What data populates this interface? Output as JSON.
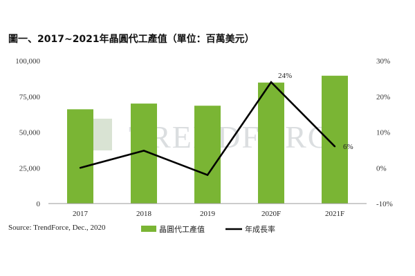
{
  "title": "圖一、2017~2021年晶圓代工產值（單位：百萬美元）",
  "source": "Source: TrendForce, Dec., 2020",
  "watermark": "TRENDFORCE",
  "colors": {
    "bar": "#7ab534",
    "line": "#000000",
    "logo": "#c9d7c0"
  },
  "chart_data": {
    "type": "bar",
    "categories": [
      "2017",
      "2018",
      "2019",
      "2020F",
      "2021F"
    ],
    "series": [
      {
        "name": "晶圓代工產值",
        "type": "bar",
        "axis": "left",
        "values": [
          66000,
          70000,
          68500,
          84700,
          89500
        ]
      },
      {
        "name": "年成長率",
        "type": "line",
        "axis": "right",
        "values": [
          0,
          4.8,
          -2,
          24,
          6
        ]
      }
    ],
    "data_labels": {
      "3": "24%",
      "4": "6%"
    },
    "y_left": {
      "min": 0,
      "max": 100000,
      "ticks": [
        "0",
        "25,000",
        "50,000",
        "75,000",
        "100,000"
      ]
    },
    "y_right": {
      "min": -10,
      "max": 30,
      "ticks": [
        "-10%",
        "0%",
        "10%",
        "20%",
        "30%"
      ]
    },
    "legend_position": "bottom",
    "grid": false
  }
}
